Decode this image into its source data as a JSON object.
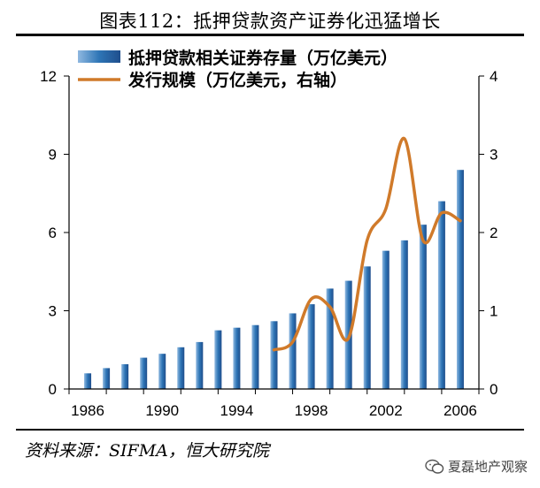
{
  "title": "图表112：抵押贷款资产证券化迅猛增长",
  "source": "资料来源：SIFMA，恒大研究院",
  "watermark": {
    "text": "夏磊地产观察",
    "icon": "wechat-icon"
  },
  "colors": {
    "bar": "#2E75B6",
    "line": "#D07A2A"
  },
  "chart_data": {
    "type": "bar+line",
    "legend": {
      "bar": "抵押贷款相关证券存量（万亿美元）",
      "line": "发行规模（万亿美元，右轴）"
    },
    "x_tick_labels": [
      "1986",
      "1990",
      "1994",
      "1998",
      "2002",
      "2006"
    ],
    "y_left": {
      "ticks": [
        "0",
        "3",
        "6",
        "9",
        "12"
      ],
      "lim": [
        0,
        12
      ]
    },
    "y_right": {
      "ticks": [
        "0",
        "1",
        "2",
        "3",
        "4"
      ],
      "lim": [
        0,
        4
      ]
    },
    "bars": {
      "x": [
        1986,
        1987,
        1988,
        1989,
        1990,
        1991,
        1992,
        1993,
        1994,
        1995,
        1996,
        1997,
        1998,
        1999,
        2000,
        2001,
        2002,
        2003,
        2004,
        2005,
        2006
      ],
      "values": [
        0.6,
        0.8,
        0.95,
        1.2,
        1.35,
        1.6,
        1.8,
        2.25,
        2.35,
        2.45,
        2.6,
        2.9,
        3.25,
        3.85,
        4.15,
        4.7,
        5.3,
        5.7,
        6.3,
        7.2,
        8.4
      ]
    },
    "line": {
      "x": [
        1996,
        1997,
        1998,
        1999,
        2000,
        2001,
        2002,
        2003,
        2004,
        2005,
        2006
      ],
      "values": [
        0.5,
        0.6,
        1.15,
        1.05,
        0.65,
        1.9,
        2.3,
        3.2,
        1.9,
        2.25,
        2.15
      ]
    }
  }
}
